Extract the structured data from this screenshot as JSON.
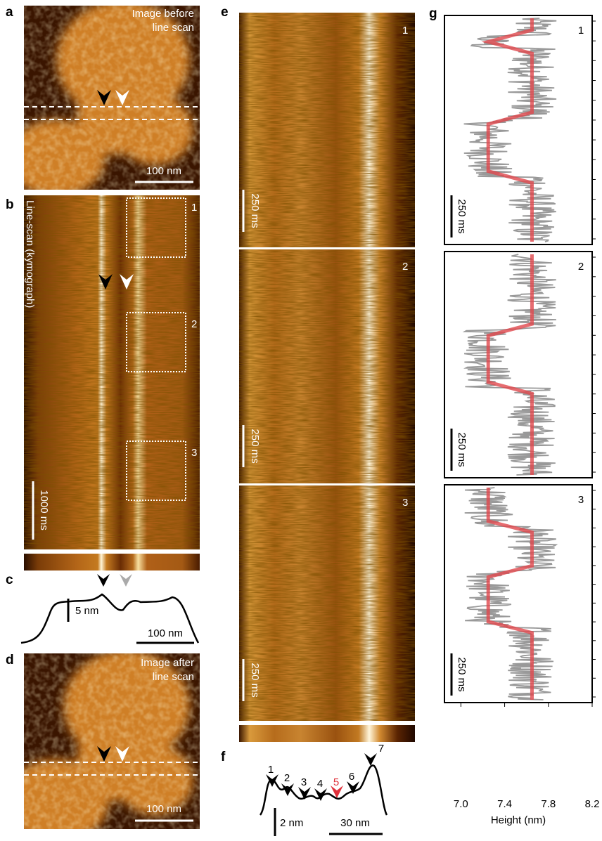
{
  "panels": {
    "a": {
      "letter": "a",
      "caption": [
        "Image before",
        "line scan"
      ],
      "scale": "100 nm"
    },
    "b": {
      "letter": "b",
      "caption": "Line-scan (kymograph)",
      "boxes": [
        "1",
        "2",
        "3"
      ],
      "scale": "1000 ms"
    },
    "c": {
      "letter": "c",
      "vscale": "5 nm",
      "hscale": "100 nm"
    },
    "d": {
      "letter": "d",
      "caption": [
        "Image after",
        "line scan"
      ],
      "scale": "100 nm"
    },
    "e": {
      "letter": "e",
      "sections": [
        "1",
        "2",
        "3"
      ],
      "scales": [
        "250 ms",
        "250 ms",
        "250 ms"
      ]
    },
    "f": {
      "letter": "f",
      "peaks": [
        "1",
        "2",
        "3",
        "4",
        "5",
        "6",
        "7"
      ],
      "vscale": "2 nm",
      "hscale": "30 nm"
    },
    "g": {
      "letter": "g",
      "scales": [
        "250 ms",
        "250 ms",
        "250 ms"
      ]
    }
  },
  "chart_data": {
    "type": "line",
    "xlabel": "Height (nm)",
    "xlim": [
      6.85,
      8.2
    ],
    "xticks": [
      {
        "value": 7,
        "label": "7.0"
      },
      7.4,
      7.8,
      8.2
    ],
    "series": [
      {
        "name": "1",
        "color": "#e0474c",
        "values": [
          7.65,
          7.65,
          7.25,
          7.65,
          7.65,
          7.65,
          7.65,
          7.65,
          7.65,
          7.25,
          7.25,
          7.25,
          7.25,
          7.25,
          7.65,
          7.65,
          7.65,
          7.65,
          7.65,
          7.65
        ]
      },
      {
        "name": "2",
        "color": "#e0474c",
        "values": [
          7.65,
          7.65,
          7.65,
          7.65,
          7.65,
          7.65,
          7.65,
          7.25,
          7.25,
          7.25,
          7.25,
          7.25,
          7.65,
          7.65,
          7.65,
          7.65,
          7.65,
          7.65,
          7.65,
          7.65
        ]
      },
      {
        "name": "3",
        "color": "#e0474c",
        "values": [
          7.25,
          7.25,
          7.25,
          7.25,
          7.65,
          7.65,
          7.65,
          7.65,
          7.25,
          7.25,
          7.25,
          7.25,
          7.25,
          7.65,
          7.65,
          7.65,
          7.65,
          7.65,
          7.65,
          7.65
        ]
      }
    ]
  }
}
